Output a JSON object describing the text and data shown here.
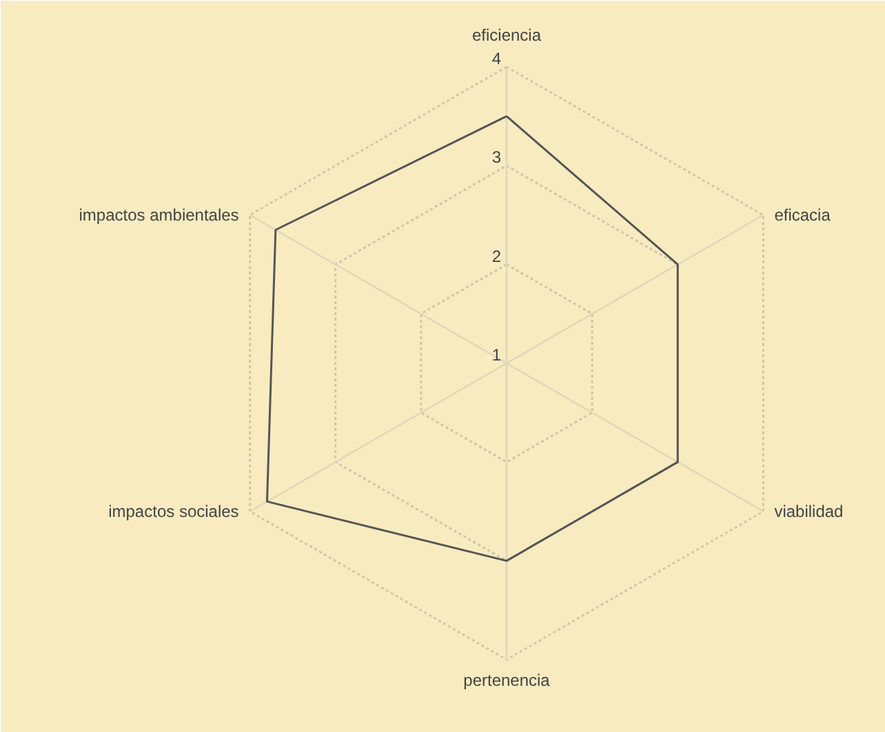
{
  "chart_data": {
    "type": "radar",
    "categories": [
      "eficiencia",
      "eficacia",
      "viabilidad",
      "pertenencia",
      "impactos sociales",
      "impactos ambientales"
    ],
    "series": [
      {
        "color": "#555555",
        "values": [
          3.5,
          3.0,
          3.0,
          3.0,
          3.8,
          3.7
        ]
      }
    ],
    "ylim": [
      1,
      4
    ],
    "yticks": [
      1,
      2,
      3,
      4
    ],
    "grid": true,
    "marker": "none",
    "line_style": "solid"
  }
}
